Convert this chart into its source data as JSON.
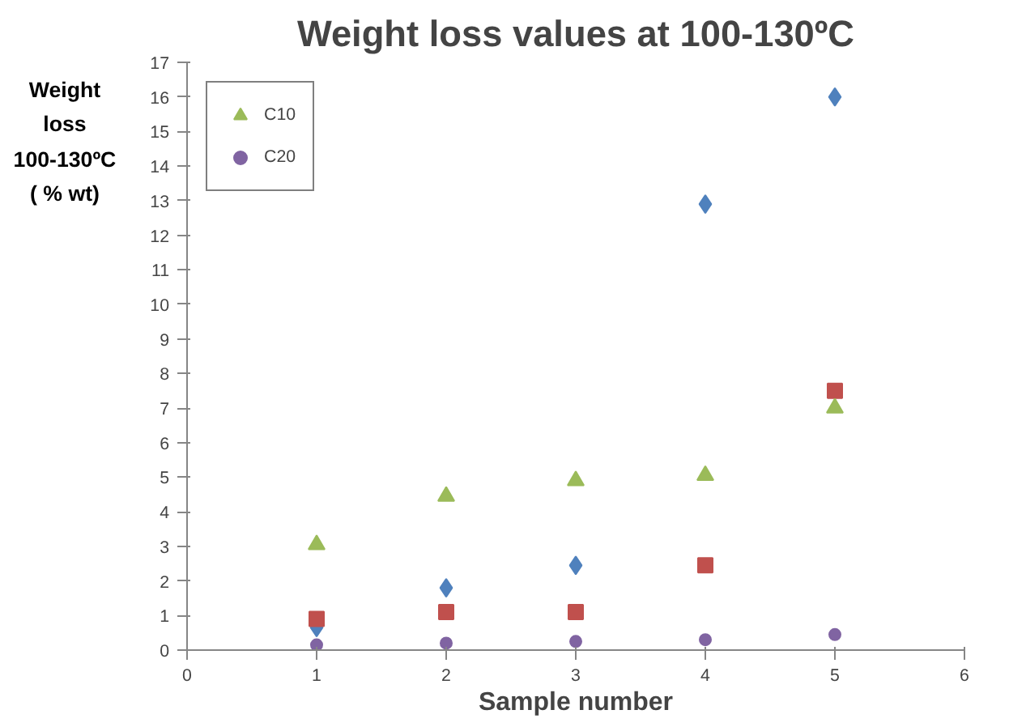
{
  "chart_data": {
    "type": "scatter",
    "title": "Weight loss values at 100-130ºC",
    "xlabel": "Sample number",
    "ylabel": "Weight\nloss\n100-130ºC\n( % wt)",
    "x": [
      1,
      2,
      3,
      4,
      5
    ],
    "series": [
      {
        "color": "#4f81bd",
        "marker": "diamond",
        "values": [
          0.65,
          1.8,
          2.45,
          12.9,
          16.0
        ]
      },
      {
        "color": "#c0504d",
        "marker": "square",
        "values": [
          0.9,
          1.1,
          1.1,
          2.45,
          7.5
        ]
      },
      {
        "name": "C10",
        "color": "#9bbb59",
        "marker": "triangle",
        "values": [
          3.05,
          4.45,
          4.9,
          5.05,
          7.0
        ]
      },
      {
        "name": "C20",
        "color": "#8064a2",
        "marker": "circle",
        "values": [
          0.15,
          0.2,
          0.25,
          0.3,
          0.45
        ]
      }
    ],
    "xlim": [
      0,
      6
    ],
    "xticks": [
      0,
      1,
      2,
      3,
      4,
      5,
      6
    ],
    "ylim": [
      0,
      17
    ],
    "yticks": [
      0,
      1,
      2,
      3,
      4,
      5,
      6,
      7,
      8,
      9,
      10,
      11,
      12,
      13,
      14,
      15,
      16,
      17
    ],
    "grid": false,
    "legend": "top left"
  }
}
